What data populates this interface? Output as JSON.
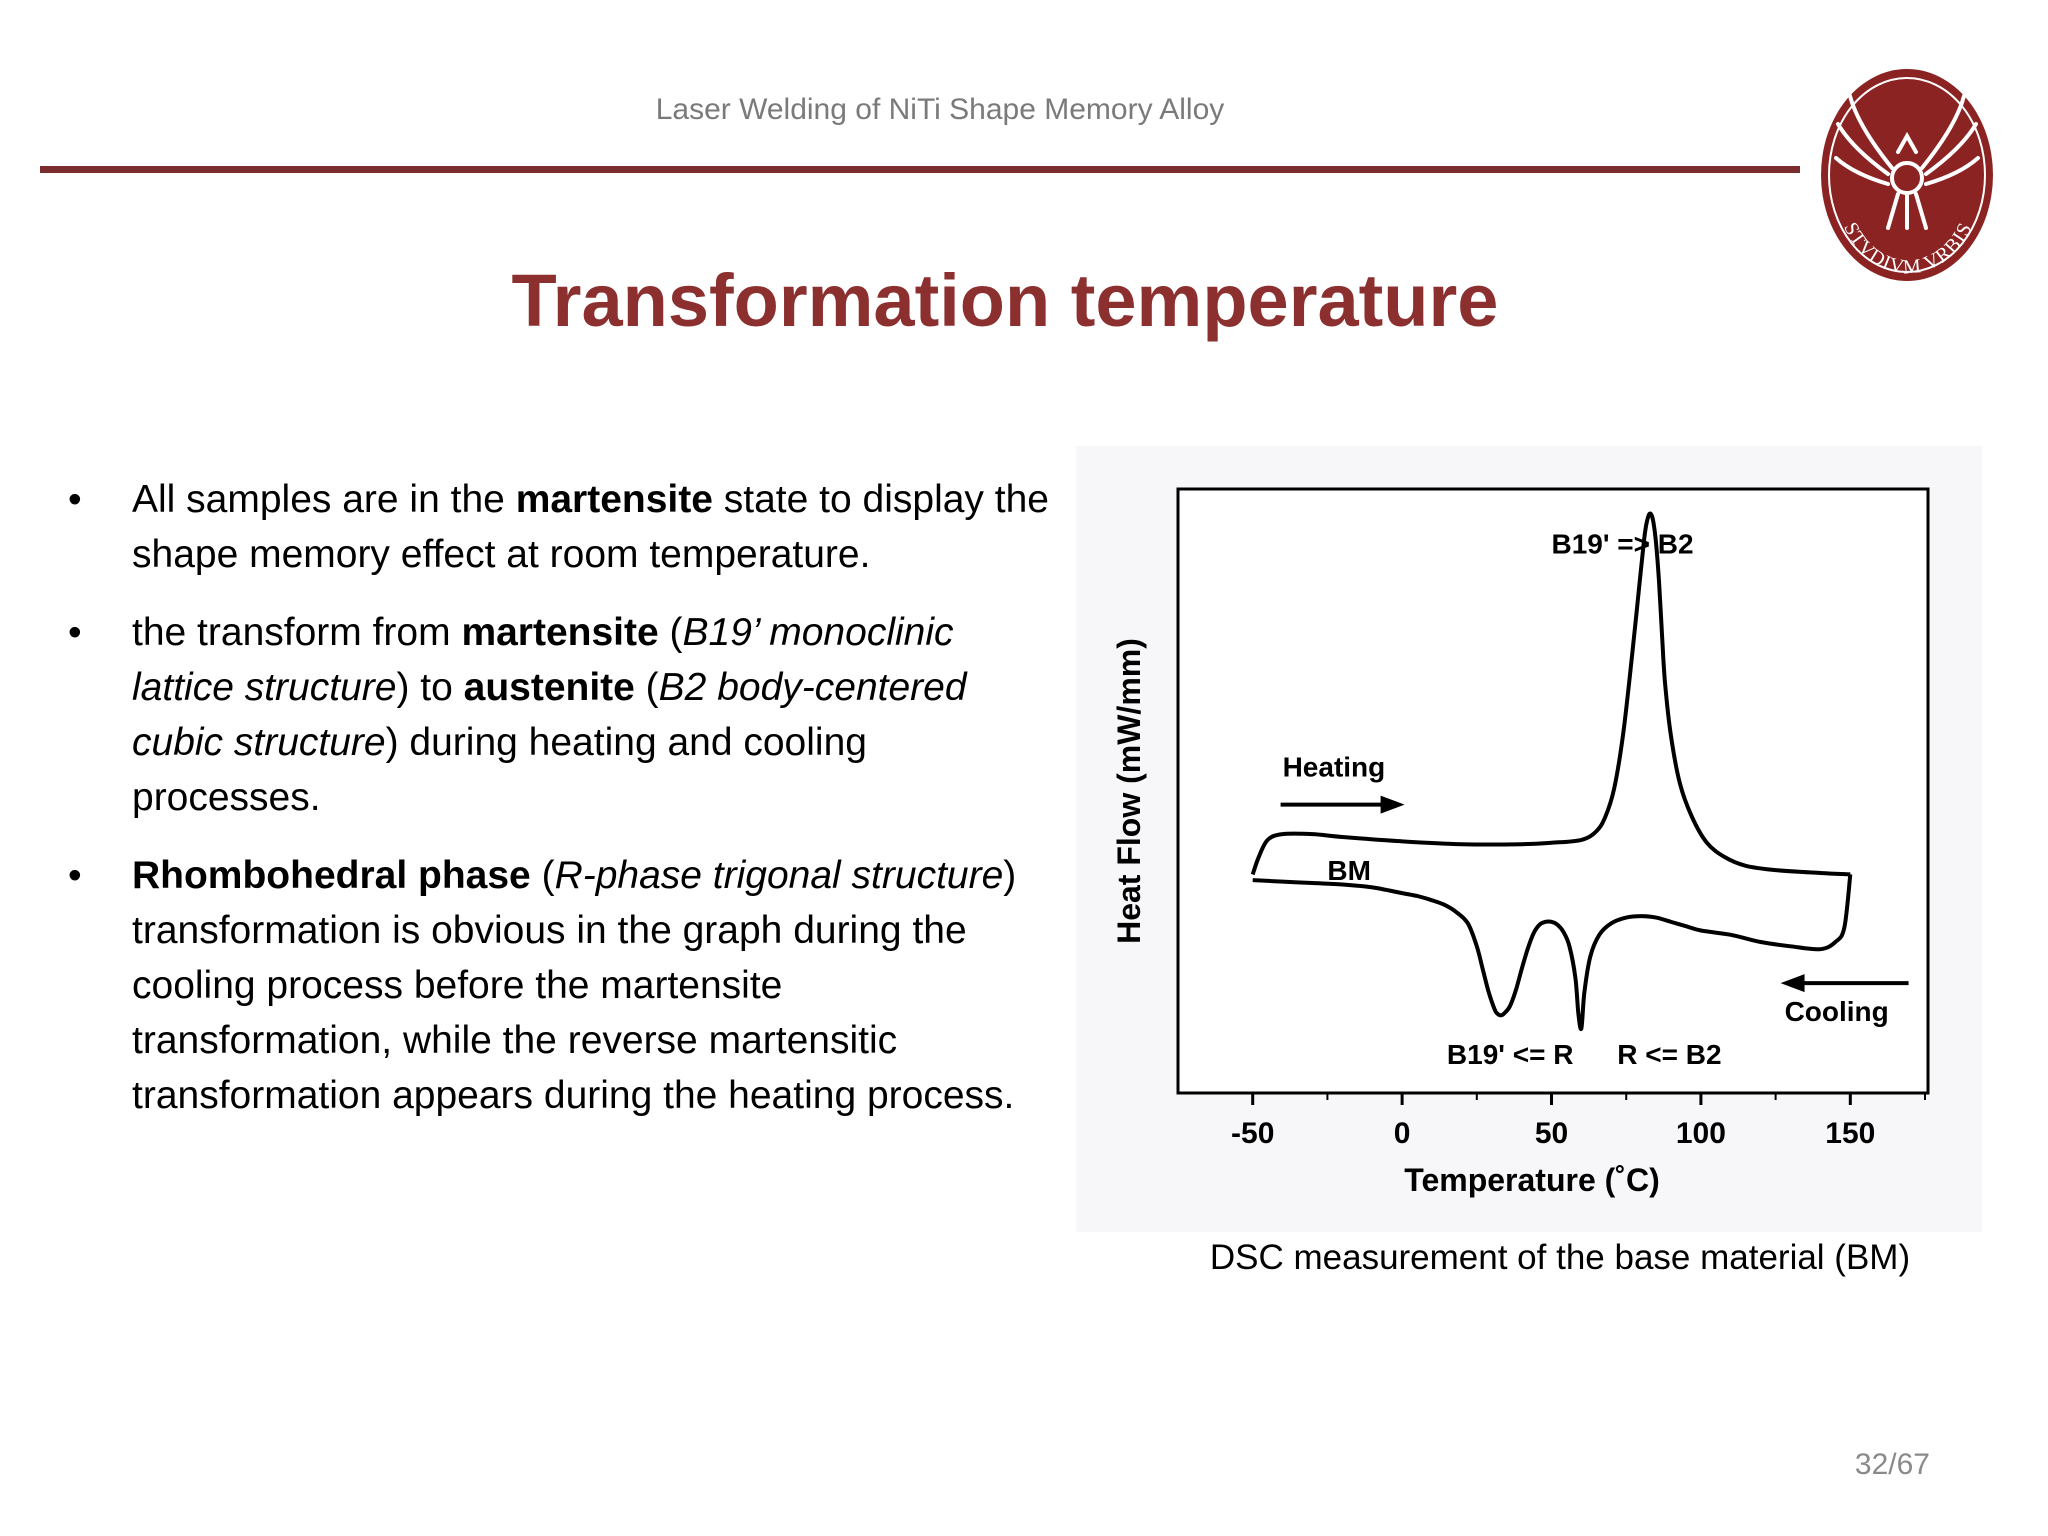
{
  "header": {
    "title": "Laser Welding of NiTi Shape Memory Alloy"
  },
  "logo": {
    "text": "STVDIVM VRBIS",
    "color": "#8b2323"
  },
  "accent_color": "#8b2f2f",
  "slide_title": "Transformation temperature",
  "bullets": [
    {
      "p1": "All samples are in the ",
      "b1": "martensite",
      "p2": " state to display the shape memory effect at room temperature."
    },
    {
      "p1": " the transform from ",
      "b1": "martensite",
      "p2": " (",
      "i1": "B19’ monoclinic lattice structure",
      "p3": ") to ",
      "b2": "austenite",
      "p4": " (",
      "i2": "B2 body-centered cubic structure",
      "p5": ") during heating and cooling processes."
    },
    {
      "b1": "Rhombohedral phase",
      "p1": " (",
      "i1": "R-phase trigonal structure",
      "p2": ") transformation is obvious in the graph during the cooling process before the martensite transformation, while the reverse martensitic transformation appears during the heating process."
    }
  ],
  "chart_data": {
    "type": "line",
    "xlabel": "Temperature (˚C)",
    "ylabel": "Heat Flow (mW/mm)",
    "xlim": [
      -75,
      176
    ],
    "xticks": [
      "-50",
      "0",
      "50",
      "100",
      "150"
    ],
    "y_tick_labels": false,
    "grid": false,
    "legend": "none",
    "series": [
      {
        "x": [
          -50,
          -48,
          -45,
          -40,
          -30,
          -20,
          0,
          20,
          40,
          50,
          60,
          65,
          68,
          71,
          74,
          77,
          79,
          81,
          82,
          83,
          84,
          85,
          86,
          87,
          88,
          90,
          93,
          97,
          102,
          108,
          115,
          125,
          140,
          150
        ],
        "y": [
          1.2,
          2.4,
          3.6,
          4.0,
          4.0,
          3.8,
          3.5,
          3.3,
          3.3,
          3.4,
          3.6,
          4.2,
          5.2,
          7.2,
          11.0,
          16.5,
          20.5,
          24.5,
          25.8,
          26.3,
          25.8,
          24.2,
          21.5,
          17.8,
          14.5,
          10.8,
          7.5,
          5.2,
          3.4,
          2.4,
          1.8,
          1.5,
          1.3,
          1.2
        ]
      },
      {
        "x": [
          150,
          148,
          145,
          140,
          130,
          120,
          110,
          100,
          95,
          90,
          85,
          80,
          75,
          70,
          66,
          63,
          61,
          60,
          59,
          58,
          56,
          54,
          52,
          50,
          48,
          46,
          44,
          42,
          40,
          38,
          36,
          34,
          33,
          32,
          31,
          29,
          27,
          25,
          22,
          18,
          14,
          10,
          5,
          0,
          -10,
          -20,
          -30,
          -40,
          -50
        ],
        "y": [
          1.2,
          -2.5,
          -3.5,
          -4.0,
          -3.8,
          -3.5,
          -3.0,
          -2.7,
          -2.4,
          -2.1,
          -1.8,
          -1.7,
          -1.8,
          -2.2,
          -3.0,
          -4.5,
          -7.0,
          -9.5,
          -8.5,
          -6.0,
          -3.8,
          -2.8,
          -2.3,
          -2.1,
          -2.1,
          -2.3,
          -2.9,
          -4.0,
          -5.4,
          -6.9,
          -8.0,
          -8.5,
          -8.6,
          -8.5,
          -8.2,
          -7.0,
          -5.4,
          -3.8,
          -2.2,
          -1.4,
          -0.9,
          -0.6,
          -0.3,
          -0.1,
          0.3,
          0.5,
          0.6,
          0.7,
          0.8
        ]
      }
    ],
    "annotations": [
      {
        "text": "B19' => B2",
        "x": 50,
        "y": 23.5
      },
      {
        "text": "Heating",
        "x": -40,
        "y": 8.0,
        "arrow": "right"
      },
      {
        "text": "BM",
        "x": -25,
        "y": 0.8
      },
      {
        "text": "Cooling",
        "x": 128,
        "y": -9.0,
        "arrow": "left"
      },
      {
        "text": "B19' <= R",
        "x": 15,
        "y": -12.0
      },
      {
        "text": "R <= B2",
        "x": 72,
        "y": -12.0
      }
    ]
  },
  "caption": "DSC measurement of the base material (BM)",
  "page_number": "32/67"
}
